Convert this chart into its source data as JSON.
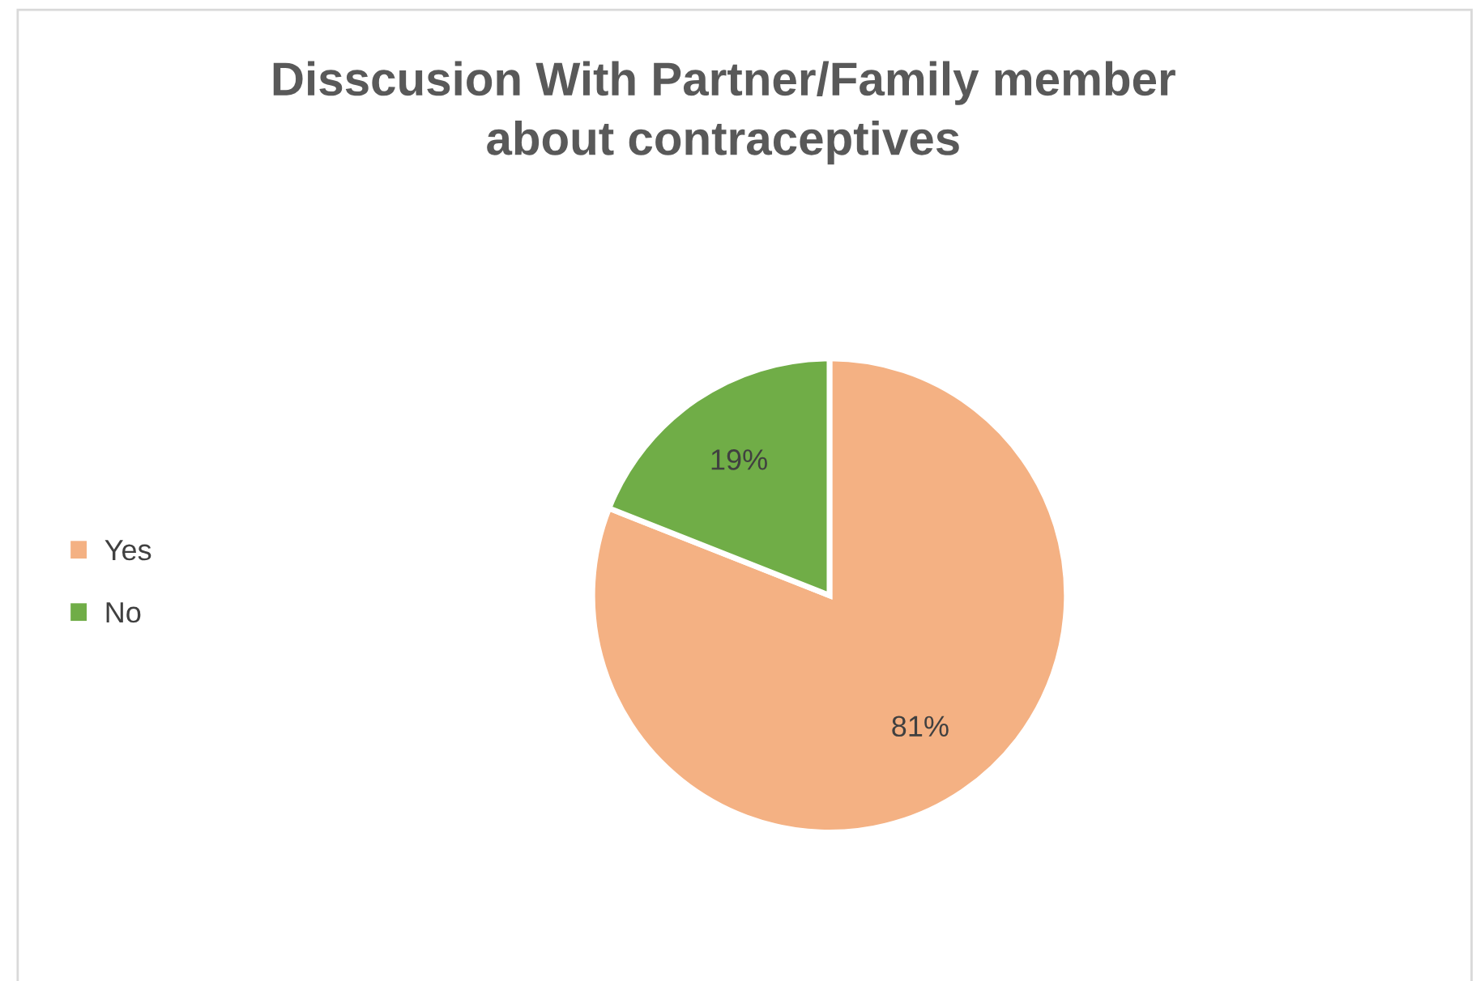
{
  "chart_data": {
    "type": "pie",
    "title": "Disscusion With Partner/Family member\nabout contraceptives",
    "categories": [
      "Yes",
      "No"
    ],
    "values": [
      81,
      19
    ],
    "colors": [
      "#f4b183",
      "#70ad47"
    ],
    "value_labels": [
      "81%",
      "19%"
    ],
    "legend": "left"
  }
}
